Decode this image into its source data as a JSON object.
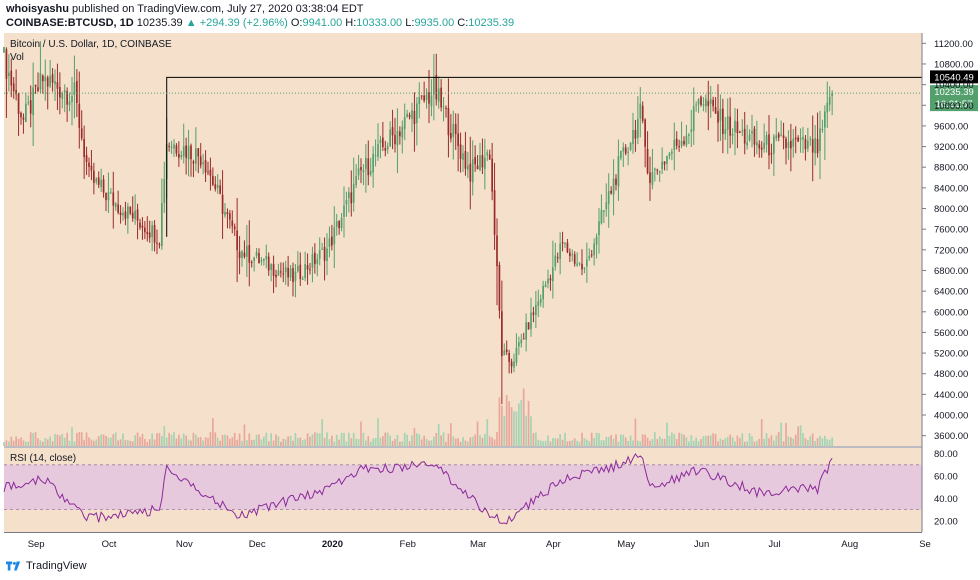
{
  "header": {
    "publisher": "whoisyashu",
    "published_text": "published on TradingView.com, July 27, 2020 03:38:04 EDT",
    "symbol": "COINBASE:BTCUSD, 1D",
    "last": "10235.39",
    "change_arrow": "▲",
    "change": "+294.39 (+2.96%)",
    "o_label": "O:",
    "o": "9941.00",
    "h_label": "H:",
    "h": "10333.00",
    "l_label": "L:",
    "l": "9935.00",
    "c_label": "C:",
    "c": "10235.39"
  },
  "footer": {
    "brand": "TradingView"
  },
  "colors": {
    "background": "#f4e0cb",
    "up": "#53a06c",
    "down": "#9b2b2a",
    "rsi_line": "#8b2a9a",
    "rsi_band": "#e6c9dc",
    "current_price_tag": "#53a06c",
    "resistance_tag": "#000000"
  },
  "chart_data": {
    "type": "candlestick",
    "title": "Bitcoin / U.S. Dollar, 1D, COINBASE",
    "volume_label": "Vol",
    "price_axis": {
      "min": 3400,
      "max": 11400,
      "ticks": [
        "11200.00",
        "10800.00",
        "10400.00",
        "10000.00",
        "9600.00",
        "9200.00",
        "8800.00",
        "8400.00",
        "8000.00",
        "7600.00",
        "7200.00",
        "6800.00",
        "6400.00",
        "6000.00",
        "5600.00",
        "5200.00",
        "4800.00",
        "4400.00",
        "4000.00",
        "3600.00"
      ]
    },
    "time_axis": {
      "labels": [
        "Sep",
        "Oct",
        "Nov",
        "Dec",
        "2020",
        "Feb",
        "Mar",
        "Apr",
        "May",
        "Jun",
        "Jul",
        "Aug",
        "Se"
      ]
    },
    "resistance_line": {
      "value": 10540.49,
      "label": "10540.49",
      "start_date": "2019-10-26"
    },
    "current_price": {
      "value": 10235.39,
      "label": "10235.39",
      "countdown": "16:21:57"
    },
    "ohlc_key_points": [
      [
        "2019-08-20",
        10900
      ],
      [
        "2019-08-28",
        9700
      ],
      [
        "2019-09-05",
        10500
      ],
      [
        "2019-09-18",
        10200
      ],
      [
        "2019-09-24",
        8600
      ],
      [
        "2019-10-05",
        8100
      ],
      [
        "2019-10-23",
        7450
      ],
      [
        "2019-10-26",
        9300
      ],
      [
        "2019-11-10",
        9000
      ],
      [
        "2019-11-25",
        7200
      ],
      [
        "2019-12-17",
        6650
      ],
      [
        "2019-12-31",
        7200
      ],
      [
        "2020-01-14",
        8700
      ],
      [
        "2020-02-13",
        10300
      ],
      [
        "2020-02-28",
        8700
      ],
      [
        "2020-03-07",
        9100
      ],
      [
        "2020-03-12",
        5200
      ],
      [
        "2020-03-16",
        5000
      ],
      [
        "2020-04-06",
        7300
      ],
      [
        "2020-04-15",
        6800
      ],
      [
        "2020-04-29",
        8800
      ],
      [
        "2020-05-08",
        9800
      ],
      [
        "2020-05-12",
        8600
      ],
      [
        "2020-05-29",
        9600
      ],
      [
        "2020-06-01",
        10200
      ],
      [
        "2020-06-10",
        9700
      ],
      [
        "2020-06-26",
        9200
      ],
      [
        "2020-07-10",
        9250
      ],
      [
        "2020-07-20",
        9150
      ],
      [
        "2020-07-26",
        10235
      ]
    ],
    "rsi": {
      "label": "RSI (14, close)",
      "range": [
        10,
        85
      ],
      "ticks": [
        "80.00",
        "60.00",
        "40.00",
        "20.00"
      ],
      "band": [
        30,
        70
      ],
      "key_points": [
        [
          "2019-08-20",
          50
        ],
        [
          "2019-09-05",
          58
        ],
        [
          "2019-09-24",
          22
        ],
        [
          "2019-10-23",
          30
        ],
        [
          "2019-10-26",
          66
        ],
        [
          "2019-11-25",
          25
        ],
        [
          "2019-12-31",
          48
        ],
        [
          "2020-01-14",
          65
        ],
        [
          "2020-02-13",
          70
        ],
        [
          "2020-02-28",
          40
        ],
        [
          "2020-03-12",
          18
        ],
        [
          "2020-04-06",
          56
        ],
        [
          "2020-04-29",
          70
        ],
        [
          "2020-05-08",
          80
        ],
        [
          "2020-05-12",
          50
        ],
        [
          "2020-06-01",
          65
        ],
        [
          "2020-06-26",
          45
        ],
        [
          "2020-07-20",
          49
        ],
        [
          "2020-07-26",
          76
        ]
      ]
    }
  }
}
